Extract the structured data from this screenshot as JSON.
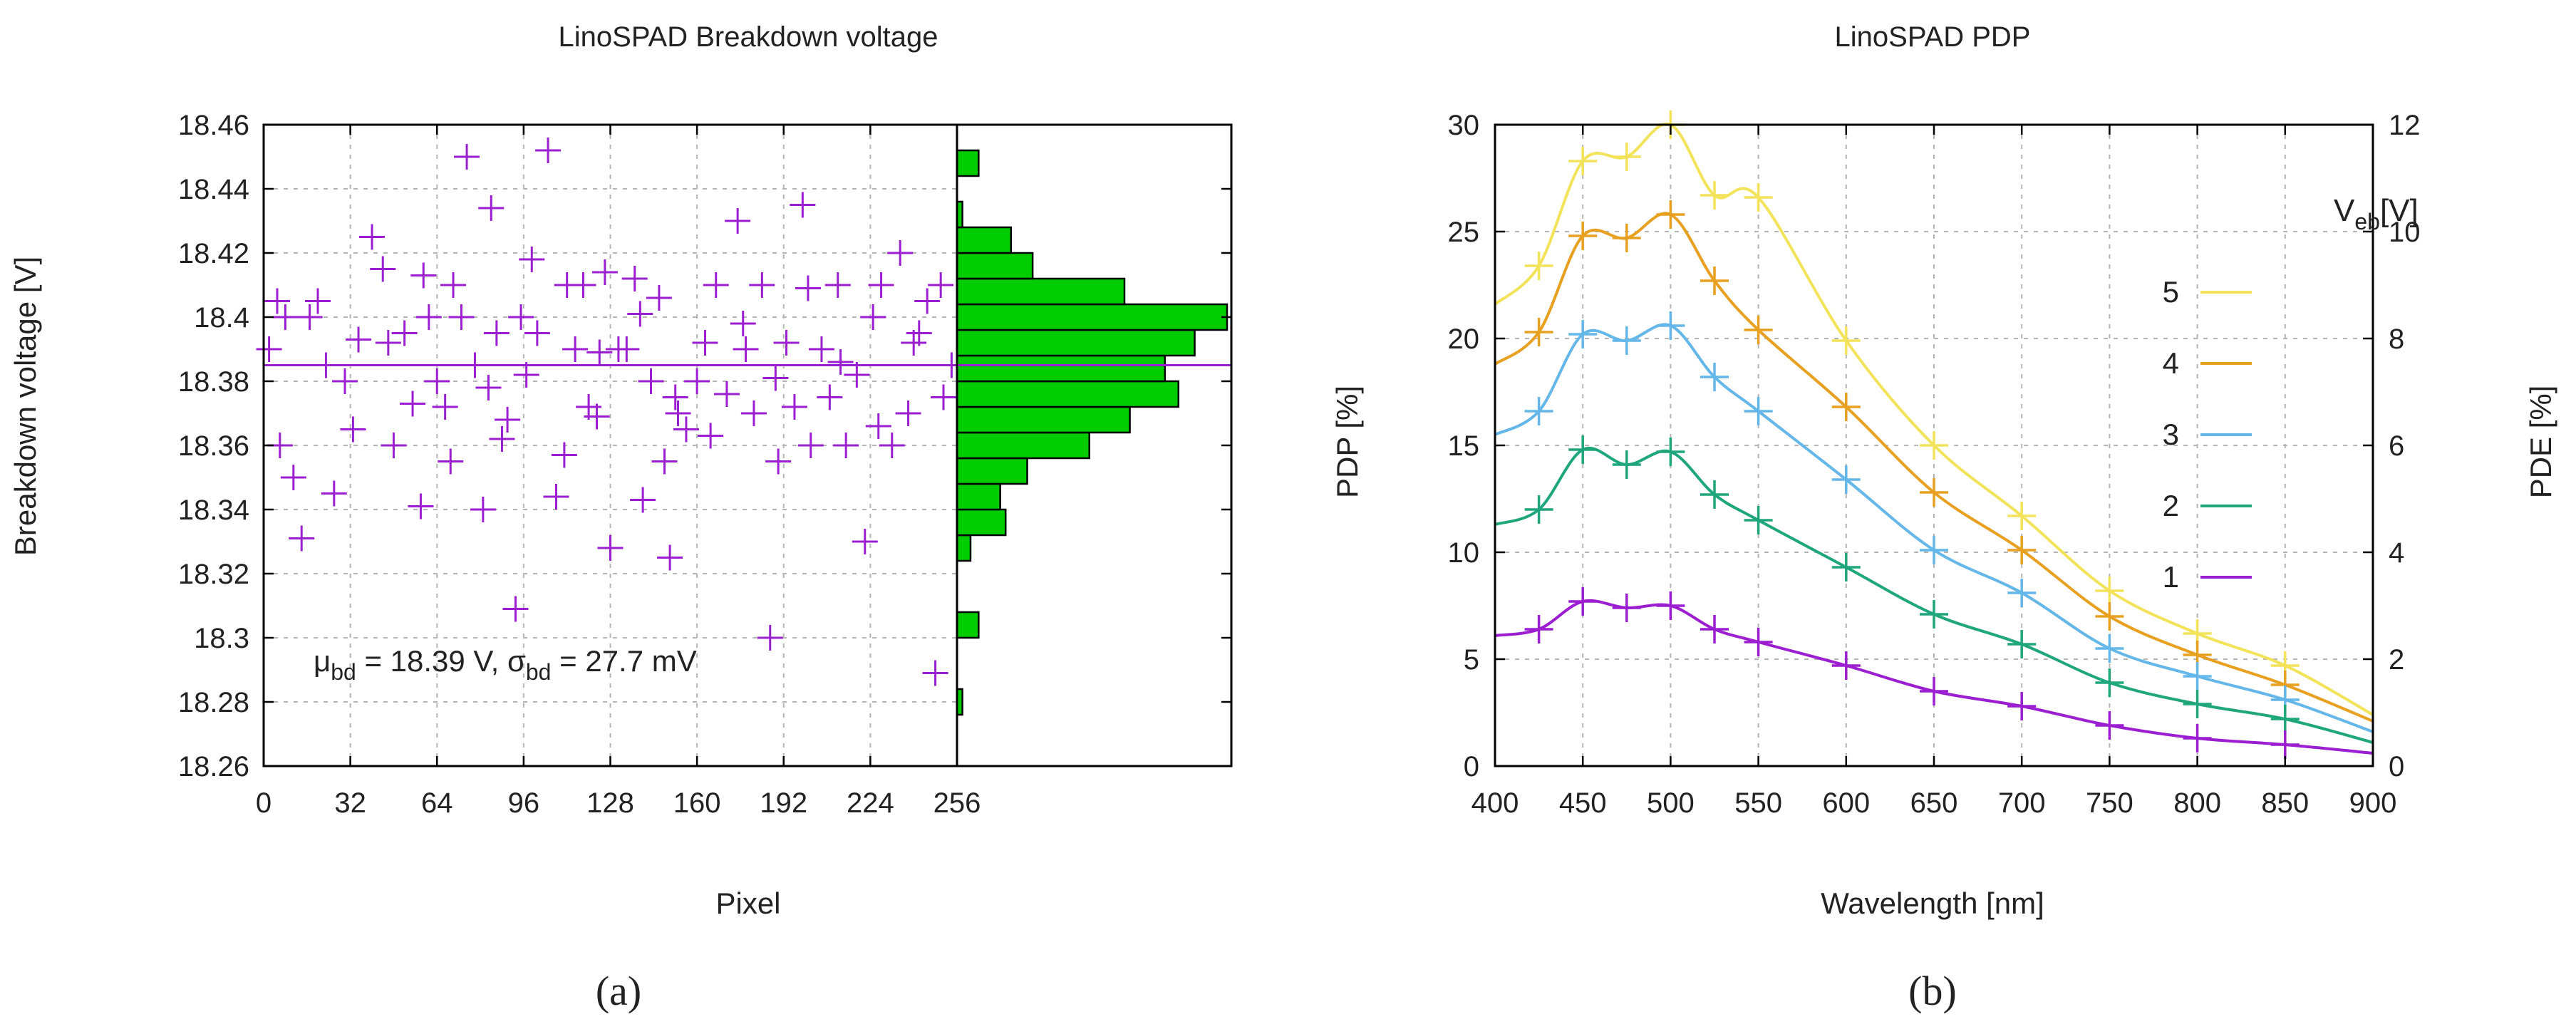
{
  "chart_data": [
    {
      "id": "a",
      "type": "scatter+histogram",
      "title": "LinoSPAD Breakdown voltage",
      "xlabel": "Pixel",
      "ylabel": "Breakdown voltage [V]",
      "xlim": [
        0,
        256
      ],
      "ylim": [
        18.26,
        18.46
      ],
      "xticks": [
        0,
        32,
        64,
        96,
        128,
        160,
        192,
        224,
        256
      ],
      "yticks": [
        18.26,
        18.28,
        18.3,
        18.32,
        18.34,
        18.36,
        18.38,
        18.4,
        18.42,
        18.44,
        18.46
      ],
      "ytick_labels": [
        "18.26",
        "18.28",
        "18.3",
        "18.32",
        "18.34",
        "18.36",
        "18.38",
        "18.4",
        "18.42",
        "18.44",
        "18.46"
      ],
      "grid": true,
      "mean_line": 18.385,
      "annotation": {
        "mu_sym": "μ",
        "mu_sub": "bd",
        "mu_text": " = 18.39 V, ",
        "sigma_sym": "σ",
        "sigma_sub": "bd",
        "sigma_text": " = 27.7 mV"
      },
      "marker_color": "#9b1fd0",
      "histogram_color": "#00cc00",
      "histogram": {
        "bin_width": 0.008,
        "bins": [
          {
            "center": 18.28,
            "count": 2
          },
          {
            "center": 18.304,
            "count": 8
          },
          {
            "center": 18.328,
            "count": 5
          },
          {
            "center": 18.336,
            "count": 18
          },
          {
            "center": 18.344,
            "count": 16
          },
          {
            "center": 18.352,
            "count": 26
          },
          {
            "center": 18.36,
            "count": 49
          },
          {
            "center": 18.368,
            "count": 64
          },
          {
            "center": 18.376,
            "count": 82
          },
          {
            "center": 18.384,
            "count": 77
          },
          {
            "center": 18.392,
            "count": 88
          },
          {
            "center": 18.4,
            "count": 100
          },
          {
            "center": 18.408,
            "count": 62
          },
          {
            "center": 18.416,
            "count": 28
          },
          {
            "center": 18.424,
            "count": 20
          },
          {
            "center": 18.432,
            "count": 2
          },
          {
            "center": 18.448,
            "count": 8
          }
        ]
      },
      "points": [
        [
          2,
          18.39
        ],
        [
          6,
          18.36
        ],
        [
          8,
          18.4
        ],
        [
          11,
          18.35
        ],
        [
          14,
          18.331
        ],
        [
          17,
          18.4
        ],
        [
          20,
          18.405
        ],
        [
          26,
          18.345
        ],
        [
          30,
          18.38
        ],
        [
          35,
          18.393
        ],
        [
          40,
          18.425
        ],
        [
          44,
          18.415
        ],
        [
          48,
          18.36
        ],
        [
          52,
          18.395
        ],
        [
          55,
          18.373
        ],
        [
          58,
          18.341
        ],
        [
          61,
          18.4
        ],
        [
          64,
          18.38
        ],
        [
          67,
          18.372
        ],
        [
          70,
          18.41
        ],
        [
          73,
          18.4
        ],
        [
          75,
          18.45
        ],
        [
          78,
          18.385
        ],
        [
          81,
          18.34
        ],
        [
          84,
          18.434
        ],
        [
          86,
          18.395
        ],
        [
          88,
          18.362
        ],
        [
          90,
          18.368
        ],
        [
          93,
          18.309
        ],
        [
          95,
          18.4
        ],
        [
          97,
          18.382
        ],
        [
          101,
          18.395
        ],
        [
          105,
          18.452
        ],
        [
          108,
          18.344
        ],
        [
          112,
          18.41
        ],
        [
          115,
          18.39
        ],
        [
          118,
          18.41
        ],
        [
          120,
          18.372
        ],
        [
          123,
          18.369
        ],
        [
          126,
          18.414
        ],
        [
          128,
          18.328
        ],
        [
          131,
          18.39
        ],
        [
          134,
          18.39
        ],
        [
          137,
          18.412
        ],
        [
          140,
          18.343
        ],
        [
          143,
          18.38
        ],
        [
          146,
          18.406
        ],
        [
          148,
          18.355
        ],
        [
          150,
          18.325
        ],
        [
          153,
          18.37
        ],
        [
          156,
          18.365
        ],
        [
          160,
          18.38
        ],
        [
          163,
          18.392
        ],
        [
          167,
          18.41
        ],
        [
          171,
          18.376
        ],
        [
          175,
          18.43
        ],
        [
          178,
          18.39
        ],
        [
          181,
          18.37
        ],
        [
          184,
          18.41
        ],
        [
          187,
          18.3
        ],
        [
          190,
          18.355
        ],
        [
          193,
          18.392
        ],
        [
          196,
          18.372
        ],
        [
          199,
          18.435
        ],
        [
          202,
          18.36
        ],
        [
          206,
          18.39
        ],
        [
          209,
          18.375
        ],
        [
          212,
          18.41
        ],
        [
          215,
          18.36
        ],
        [
          219,
          18.382
        ],
        [
          222,
          18.33
        ],
        [
          225,
          18.4
        ],
        [
          228,
          18.41
        ],
        [
          232,
          18.36
        ],
        [
          235,
          18.42
        ],
        [
          238,
          18.37
        ],
        [
          242,
          18.395
        ],
        [
          245,
          18.405
        ],
        [
          248,
          18.289
        ],
        [
          251,
          18.375
        ],
        [
          254,
          18.385
        ],
        [
          5,
          18.405
        ],
        [
          23,
          18.385
        ],
        [
          33,
          18.365
        ],
        [
          46,
          18.392
        ],
        [
          59,
          18.413
        ],
        [
          69,
          18.355
        ],
        [
          83,
          18.378
        ],
        [
          99,
          18.418
        ],
        [
          111,
          18.357
        ],
        [
          124,
          18.389
        ],
        [
          139,
          18.401
        ],
        [
          152,
          18.375
        ],
        [
          165,
          18.363
        ],
        [
          177,
          18.398
        ],
        [
          189,
          18.381
        ],
        [
          201,
          18.409
        ],
        [
          213,
          18.386
        ],
        [
          227,
          18.366
        ],
        [
          240,
          18.392
        ],
        [
          250,
          18.41
        ]
      ]
    },
    {
      "id": "b",
      "type": "line",
      "title": "LinoSPAD PDP",
      "xlabel": "Wavelength [nm]",
      "ylabel": "PDP [%]",
      "y2label": "PDE [%]",
      "xlim": [
        400,
        900
      ],
      "ylim": [
        0,
        30
      ],
      "y2lim": [
        0,
        12
      ],
      "xticks": [
        400,
        450,
        500,
        550,
        600,
        650,
        700,
        750,
        800,
        850,
        900
      ],
      "yticks": [
        0,
        5,
        10,
        15,
        20,
        25,
        30
      ],
      "y2ticks": [
        0,
        2,
        4,
        6,
        8,
        10,
        12
      ],
      "grid": true,
      "legend_position": "right",
      "legend_title": "V",
      "legend_title_sub": "eb",
      "legend_title_suffix": "[V]",
      "series": [
        {
          "name": "5",
          "color": "#f2e35a",
          "x": [
            400,
            425,
            450,
            475,
            500,
            525,
            550,
            600,
            650,
            700,
            750,
            800,
            850,
            900
          ],
          "values": [
            21.6,
            23.4,
            28.3,
            28.5,
            30.0,
            26.7,
            26.6,
            19.9,
            15.0,
            11.7,
            8.2,
            6.2,
            4.7,
            2.4
          ]
        },
        {
          "name": "4",
          "color": "#e8a021",
          "x": [
            400,
            425,
            450,
            475,
            500,
            525,
            550,
            600,
            650,
            700,
            750,
            800,
            850,
            900
          ],
          "values": [
            18.8,
            20.3,
            24.8,
            24.7,
            25.8,
            22.7,
            20.4,
            16.8,
            12.8,
            10.1,
            7.0,
            5.2,
            3.8,
            2.1
          ]
        },
        {
          "name": "3",
          "color": "#64b7e8",
          "x": [
            400,
            425,
            450,
            475,
            500,
            525,
            550,
            600,
            650,
            700,
            750,
            800,
            850,
            900
          ],
          "values": [
            15.5,
            16.6,
            20.2,
            19.9,
            20.6,
            18.2,
            16.6,
            13.4,
            10.1,
            8.1,
            5.5,
            4.2,
            3.1,
            1.6
          ]
        },
        {
          "name": "2",
          "color": "#1fa67a",
          "x": [
            400,
            425,
            450,
            475,
            500,
            525,
            550,
            600,
            650,
            700,
            750,
            800,
            850,
            900
          ],
          "values": [
            11.3,
            12.0,
            14.8,
            14.1,
            14.7,
            12.7,
            11.5,
            9.3,
            7.1,
            5.7,
            3.9,
            2.9,
            2.2,
            1.1
          ]
        },
        {
          "name": "1",
          "color": "#9b1fd0",
          "x": [
            400,
            425,
            450,
            475,
            500,
            525,
            550,
            600,
            650,
            700,
            750,
            800,
            850,
            900
          ],
          "values": [
            6.1,
            6.4,
            7.7,
            7.4,
            7.5,
            6.4,
            5.8,
            4.7,
            3.5,
            2.8,
            1.9,
            1.3,
            1.0,
            0.6
          ]
        }
      ]
    }
  ],
  "captions": {
    "a": "(a)",
    "b": "(b)"
  }
}
